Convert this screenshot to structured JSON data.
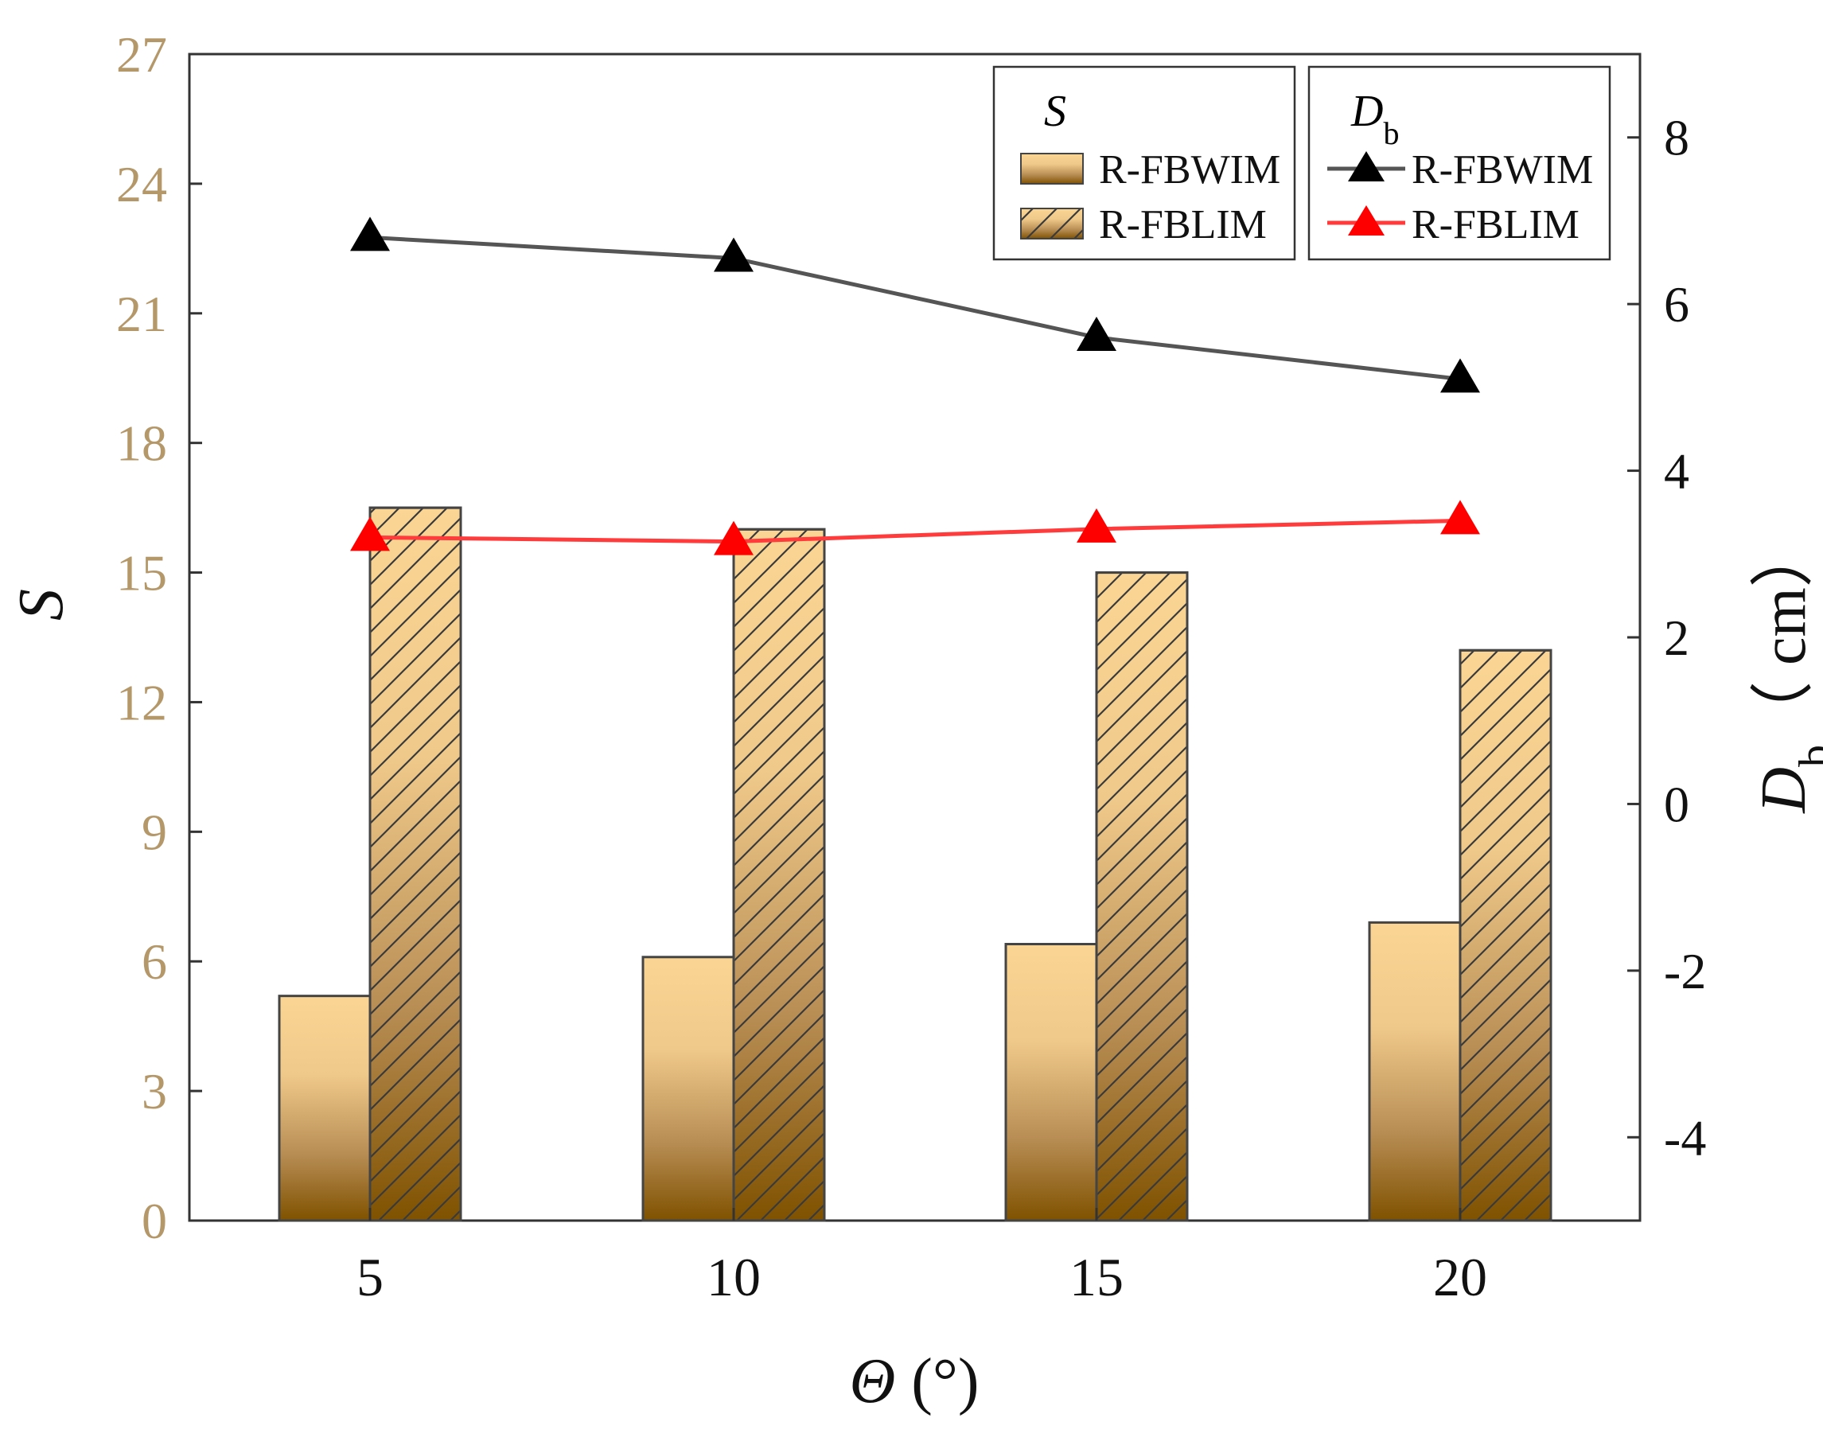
{
  "chart_data": {
    "type": "bar+line",
    "categories": [
      "5",
      "10",
      "15",
      "20"
    ],
    "xlabel": "Θ (°)",
    "xlabel_symbol": "Θ",
    "xlabel_unit": " (°)",
    "left_axis": {
      "label": "S",
      "ylim": [
        0,
        27
      ],
      "ticks": [
        0,
        3,
        6,
        9,
        12,
        15,
        18,
        21,
        24,
        27
      ],
      "tick_color": "#b5986a"
    },
    "right_axis": {
      "label": "Db（ cm）",
      "label_symbol": "D",
      "label_subscript": "b",
      "label_unit": "（ cm）",
      "ylim": [
        -5,
        9
      ],
      "ticks": [
        -4,
        -2,
        0,
        2,
        4,
        6,
        8
      ]
    },
    "bar_series": [
      {
        "name": "R-FBWIM",
        "values": [
          5.2,
          6.1,
          6.4,
          6.9
        ],
        "hatched": false
      },
      {
        "name": "R-FBLIM",
        "values": [
          16.5,
          16.0,
          15.0,
          13.2
        ],
        "hatched": true
      }
    ],
    "line_series": [
      {
        "name": "R-FBWIM",
        "values": [
          6.8,
          6.55,
          5.6,
          5.1
        ],
        "color": "#555555",
        "marker_color": "#000000"
      },
      {
        "name": "R-FBLIM",
        "values": [
          3.2,
          3.15,
          3.3,
          3.4
        ],
        "color": "#ff3b3b",
        "marker_color": "#ff0000"
      }
    ],
    "legend": {
      "bars_title": "S",
      "lines_title": "D",
      "lines_title_subscript": "b",
      "placement": "top-right"
    },
    "colors": {
      "bar_light": "#fad593",
      "bar_dark": "#7f5200",
      "bar_outline": "#444444",
      "hatch": "#3a3a3a",
      "axis": "#333333"
    }
  }
}
